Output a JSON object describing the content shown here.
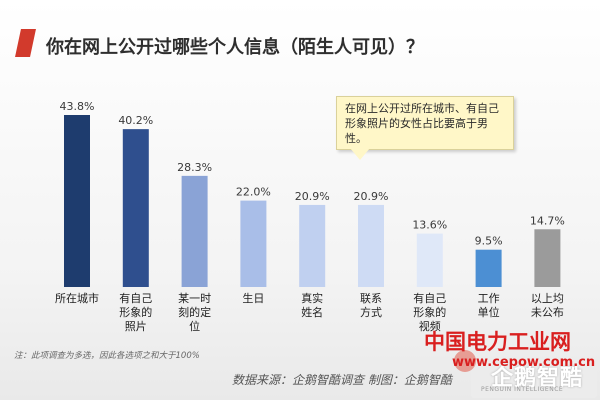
{
  "title": "你在网上公开过哪些个人信息（陌生人可见）？",
  "callout": "在网上公开过所在城市、有自己形象照片的女性占比要高于男性。",
  "note": "注：此项调查为多选，因此各选项之和大于100%",
  "source": "数据来源：企鹅智酷调查  制图：企鹅智酷",
  "logo": {
    "main": "企鹅智酷",
    "sub": "PENGUIN INTELLIGENCE"
  },
  "watermark": {
    "cn": "中国电力工业网",
    "en": "www.cepow.com.cn"
  },
  "colors": {
    "accent": "#d23a2c",
    "watermark": "#d91f1f"
  },
  "chart_data": {
    "type": "bar",
    "title": "你在网上公开过哪些个人信息（陌生人可见）？",
    "unit": "%",
    "ylim": [
      0,
      50
    ],
    "grid": false,
    "categories": [
      [
        "所在城市"
      ],
      [
        "有自己",
        "形象的",
        "照片"
      ],
      [
        "某一时",
        "刻的定",
        "位"
      ],
      [
        "生日"
      ],
      [
        "真实",
        "姓名"
      ],
      [
        "联系",
        "方式"
      ],
      [
        "有自己",
        "形象的",
        "视频"
      ],
      [
        "工作",
        "单位"
      ],
      [
        "以上均",
        "未公布"
      ]
    ],
    "values": [
      43.8,
      40.2,
      28.3,
      22.0,
      20.9,
      20.9,
      13.6,
      9.5,
      14.7
    ],
    "labels": [
      "43.8%",
      "40.2%",
      "28.3%",
      "22.0%",
      "20.9%",
      "20.9%",
      "13.6%",
      "9.5%",
      "14.7%"
    ],
    "bar_colors": [
      "#1e3c6e",
      "#2f4f8e",
      "#8aa3d6",
      "#a9bee8",
      "#c0d0f0",
      "#cedbf4",
      "#dfe8f8",
      "#4c8fd3",
      "#9b9b9b"
    ]
  }
}
